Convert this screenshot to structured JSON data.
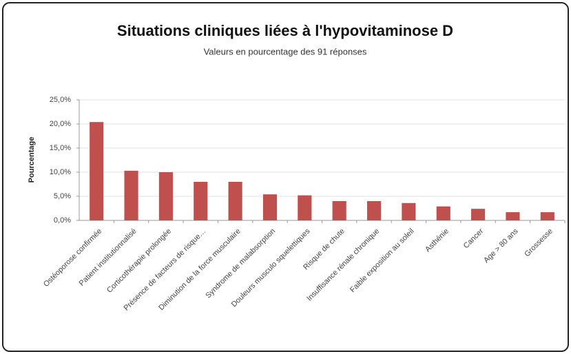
{
  "chart_data": {
    "type": "bar",
    "title": "Situations cliniques liées à l'hypovitaminose D",
    "subtitle": "Valeurs en pourcentage des 91 réponses",
    "y_label": "Pourcentage",
    "categories": [
      "Ostéoporose confirmée",
      "Patient institutionnalisé",
      "Corticothérapie prolongée",
      "Présence de facteurs de risque…",
      "Diminution de la force musculaire",
      "Syndrome de malabsorption",
      "Douleurs musculo squelettiques",
      "Risque de chute",
      "Insuffisance rénale chronique",
      "Faible exposition au soleil",
      "Asthénie",
      "Cancer",
      "Age > 80 ans",
      "Grossesse"
    ],
    "values": [
      20.4,
      10.3,
      10.0,
      8.0,
      8.0,
      5.4,
      5.2,
      4.0,
      4.0,
      3.6,
      2.9,
      2.4,
      1.7,
      1.7
    ],
    "color": "#c0504d",
    "ylim": [
      0,
      25
    ],
    "yticks": [
      {
        "value": 0,
        "label": "0,0%"
      },
      {
        "value": 5,
        "label": "5,0%"
      },
      {
        "value": 10,
        "label": "10,0%"
      },
      {
        "value": 15,
        "label": "15,0%"
      },
      {
        "value": 20,
        "label": "20,0%"
      },
      {
        "value": 25,
        "label": "25,0%"
      }
    ],
    "grid": true
  }
}
